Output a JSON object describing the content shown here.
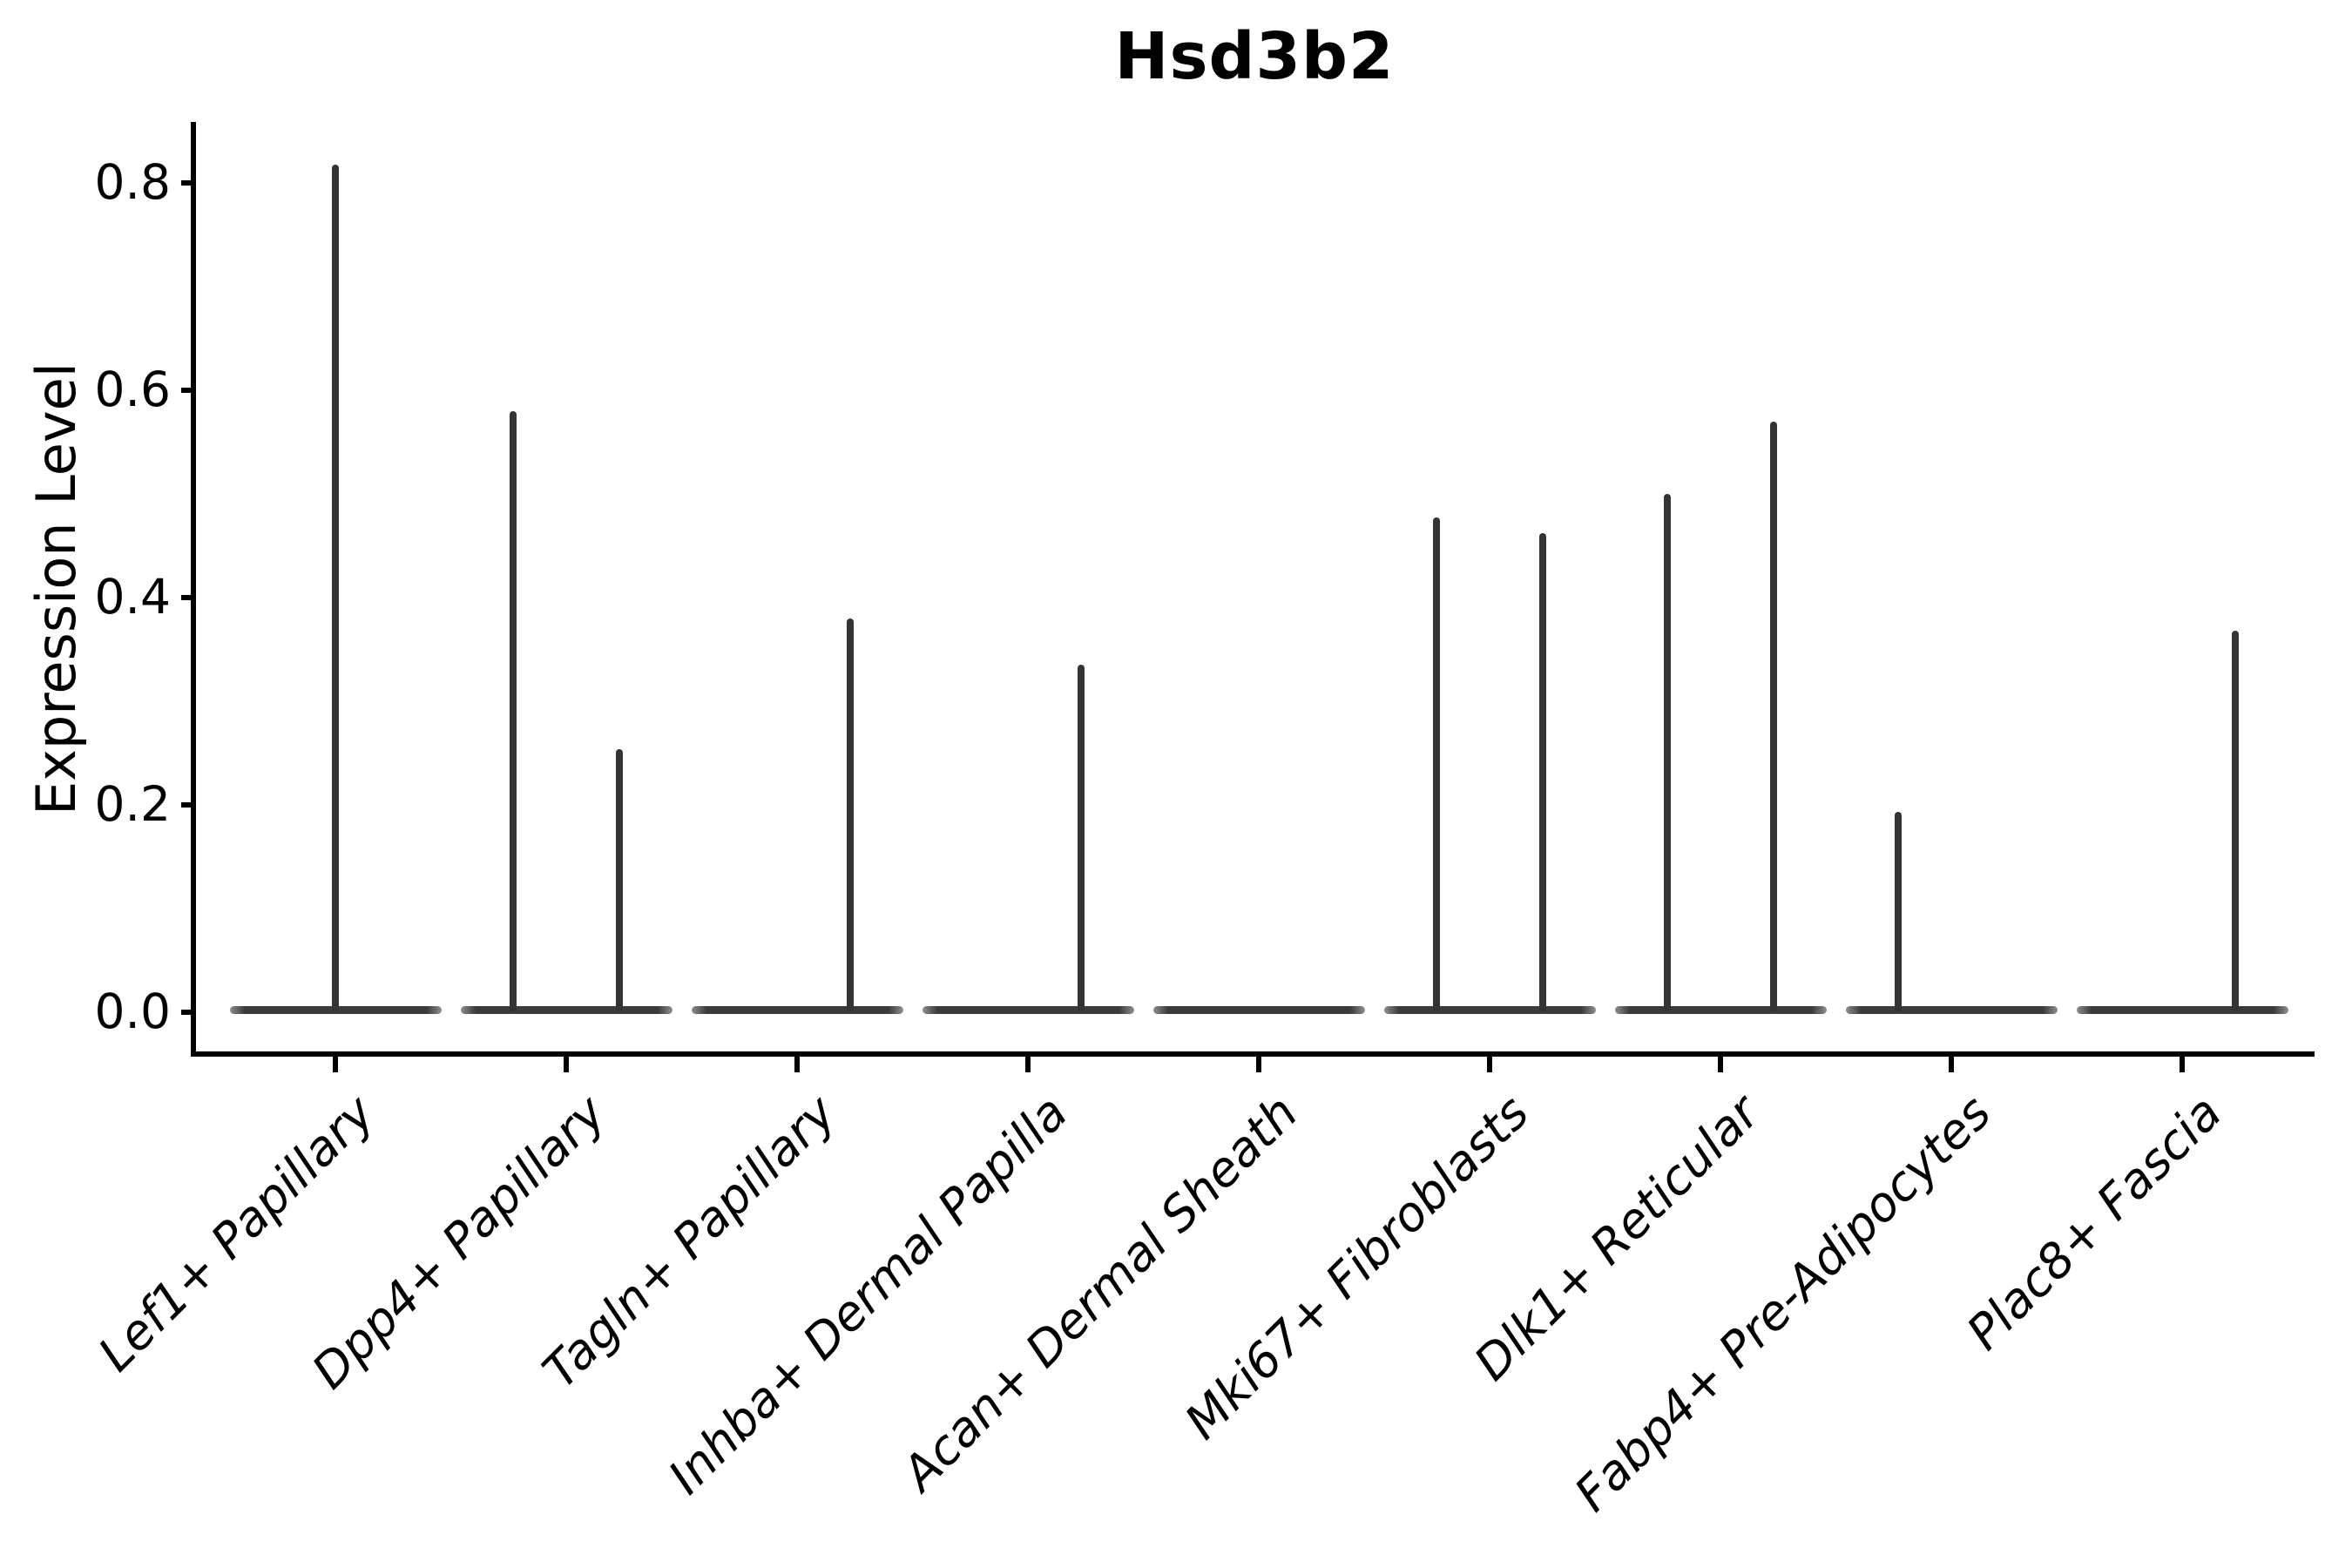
{
  "title": "Hsd3b2",
  "chart_data": {
    "type": "violin",
    "title": "Hsd3b2",
    "xlabel": "",
    "ylabel": "Expression Level",
    "ylim": [
      0,
      0.86
    ],
    "yticks": [
      0.0,
      0.2,
      0.4,
      0.6,
      0.8
    ],
    "ytick_labels": [
      "0.0",
      "0.2",
      "0.4",
      "0.6",
      "0.8"
    ],
    "grid": false,
    "legend": "none",
    "categories": [
      "Lef1+ Papillary",
      "Dpp4+ Papillary",
      "Tagln+ Papillary",
      "Inhba+ Dermal Papilla",
      "Acan+ Dermal Sheath",
      "Mki67+ Fibroblasts",
      "Dlk1+ Reticular",
      "Fabp4+ Pre-Adipocytes",
      "Plac8+ Fascia"
    ],
    "description": "Violin plot of mostly-zero expression: each category shows a flat collapsed violin at 0 with thin density spikes reaching the maximum expression values",
    "violins": [
      {
        "category": "Lef1+ Papillary",
        "spikes": [
          {
            "pos": "center",
            "value": 0.818
          }
        ]
      },
      {
        "category": "Dpp4+ Papillary",
        "spikes": [
          {
            "pos": "left",
            "value": 0.58
          },
          {
            "pos": "right",
            "value": 0.254
          }
        ]
      },
      {
        "category": "Tagln+ Papillary",
        "spikes": [
          {
            "pos": "right",
            "value": 0.38
          }
        ]
      },
      {
        "category": "Inhba+ Dermal Papilla",
        "spikes": [
          {
            "pos": "right",
            "value": 0.335
          }
        ]
      },
      {
        "category": "Acan+ Dermal Sheath",
        "spikes": []
      },
      {
        "category": "Mki67+ Fibroblasts",
        "spikes": [
          {
            "pos": "left",
            "value": 0.477
          },
          {
            "pos": "right",
            "value": 0.462
          }
        ]
      },
      {
        "category": "Dlk1+ Reticular",
        "spikes": [
          {
            "pos": "left",
            "value": 0.5
          },
          {
            "pos": "right",
            "value": 0.57
          }
        ]
      },
      {
        "category": "Fabp4+ Pre-Adipocytes",
        "spikes": [
          {
            "pos": "left",
            "value": 0.193
          }
        ]
      },
      {
        "category": "Plac8+ Fascia",
        "spikes": [
          {
            "pos": "right",
            "value": 0.368
          }
        ]
      }
    ]
  },
  "colors": {
    "background": "#ffffff",
    "axis": "#000000",
    "text": "#000000",
    "violin": "#3a3a3a"
  }
}
